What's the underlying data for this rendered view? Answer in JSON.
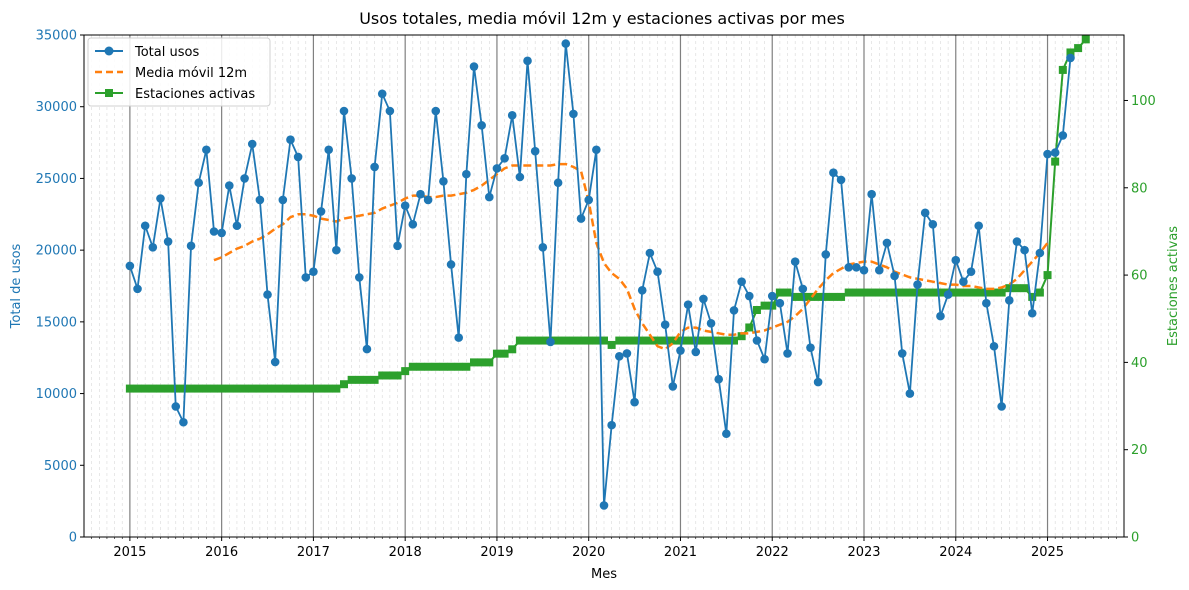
{
  "chart_data": {
    "type": "line",
    "title": "Usos totales, media móvil 12m y estaciones activas por mes",
    "xlabel": "Mes",
    "ylabel_left": "Total de usos",
    "ylabel_right": "Estaciones activas",
    "x_ticks": [
      "2015",
      "2016",
      "2017",
      "2018",
      "2019",
      "2020",
      "2021",
      "2022",
      "2023",
      "2024",
      "2025"
    ],
    "xlim": [
      "2014-07",
      "2025-11"
    ],
    "ylim_left": [
      0,
      35000
    ],
    "ylim_right": [
      0,
      115
    ],
    "yticks_left": [
      "0",
      "5000",
      "10000",
      "15000",
      "20000",
      "25000",
      "30000",
      "35000"
    ],
    "yticks_right": [
      "0",
      "20",
      "40",
      "60",
      "80",
      "100"
    ],
    "grid": {
      "major_x": true,
      "minor_x": true,
      "y": false
    },
    "legend_position": "top-left",
    "colors": {
      "total": "#1f77b4",
      "media": "#ff7f0e",
      "estaciones": "#2ca02c"
    },
    "legend": [
      "Total usos",
      "Media móvil 12m",
      "Estaciones activas"
    ],
    "series": [
      {
        "name": "Total usos",
        "start": "2015-01",
        "axis": "left",
        "values": [
          18900,
          17300,
          21700,
          20200,
          23600,
          20600,
          9100,
          8000,
          20300,
          24700,
          27000,
          21300,
          21200,
          24500,
          21700,
          25000,
          27400,
          23500,
          16900,
          12200,
          23500,
          27700,
          26500,
          18100,
          18500,
          22700,
          27000,
          20000,
          29700,
          25000,
          18100,
          13100,
          25800,
          30900,
          29700,
          20300,
          23100,
          21800,
          23900,
          23500,
          29700,
          24800,
          19000,
          13900,
          25300,
          32800,
          28700,
          23700,
          25700,
          26400,
          29400,
          25100,
          33200,
          26900,
          20200,
          13600,
          24700,
          34400,
          29500,
          22200,
          23500,
          27000,
          2200,
          7800,
          12600,
          12800,
          9400,
          17200,
          19800,
          18500,
          14800,
          10500,
          13000,
          16200,
          12900,
          16600,
          14900,
          11000,
          7200,
          15800,
          17800,
          16800,
          13700,
          12400,
          16800,
          16300,
          12800,
          19200,
          17300,
          13200,
          10800,
          19700,
          25400,
          24900,
          18800,
          18800,
          18600,
          23900,
          18600,
          20500,
          18200,
          12800,
          10000,
          17600,
          22600,
          21800,
          15400,
          16900,
          19300,
          17800,
          18500,
          21700,
          16300,
          13300,
          9100,
          16500,
          20600,
          20000,
          15600,
          19800,
          26700,
          26800,
          28000,
          33400
        ]
      },
      {
        "name": "Media móvil 12m",
        "start": "2015-12",
        "axis": "left",
        "values": [
          19300,
          19500,
          19800,
          20100,
          20300,
          20600,
          20800,
          21100,
          21500,
          21800,
          22300,
          22500,
          22500,
          22400,
          22200,
          22100,
          22000,
          22200,
          22300,
          22400,
          22500,
          22600,
          22900,
          23100,
          23300,
          23600,
          23800,
          23800,
          23700,
          23700,
          23800,
          23800,
          23900,
          24000,
          24200,
          24500,
          24900,
          25300,
          25700,
          25900,
          25900,
          25900,
          25900,
          25900,
          25900,
          26000,
          26000,
          25800,
          25500,
          23400,
          20500,
          19100,
          18400,
          18000,
          17300,
          15900,
          14900,
          14100,
          13300,
          13100,
          13500,
          14300,
          14600,
          14600,
          14400,
          14300,
          14200,
          14100,
          14100,
          14200,
          14200,
          14300,
          14400,
          14600,
          14800,
          15000,
          15400,
          15900,
          16600,
          17300,
          17900,
          18400,
          18700,
          19000,
          19100,
          19200,
          19200,
          19000,
          18800,
          18500,
          18300,
          18100,
          18000,
          17900,
          17800,
          17700,
          17600,
          17600,
          17500,
          17500,
          17400,
          17300,
          17300,
          17400,
          17600,
          18000,
          18600,
          19200,
          19800,
          20500
        ]
      },
      {
        "name": "Estaciones activas",
        "start": "2015-01",
        "axis": "right",
        "values": [
          34,
          34,
          34,
          34,
          34,
          34,
          34,
          34,
          34,
          34,
          34,
          34,
          34,
          34,
          34,
          34,
          34,
          34,
          34,
          34,
          34,
          34,
          34,
          34,
          34,
          34,
          34,
          34,
          35,
          36,
          36,
          36,
          36,
          37,
          37,
          37,
          38,
          39,
          39,
          39,
          39,
          39,
          39,
          39,
          39,
          40,
          40,
          40,
          42,
          42,
          43,
          45,
          45,
          45,
          45,
          45,
          45,
          45,
          45,
          45,
          45,
          45,
          45,
          44,
          45,
          45,
          45,
          45,
          45,
          45,
          45,
          45,
          45,
          45,
          45,
          45,
          45,
          45,
          45,
          45,
          46,
          48,
          52,
          53,
          53,
          56,
          56,
          55,
          55,
          55,
          55,
          55,
          55,
          55,
          56,
          56,
          56,
          56,
          56,
          56,
          56,
          56,
          56,
          56,
          56,
          56,
          56,
          56,
          56,
          56,
          56,
          56,
          56,
          56,
          56,
          57,
          57,
          57,
          55,
          56,
          60,
          86,
          107,
          111,
          112,
          114
        ]
      }
    ]
  }
}
